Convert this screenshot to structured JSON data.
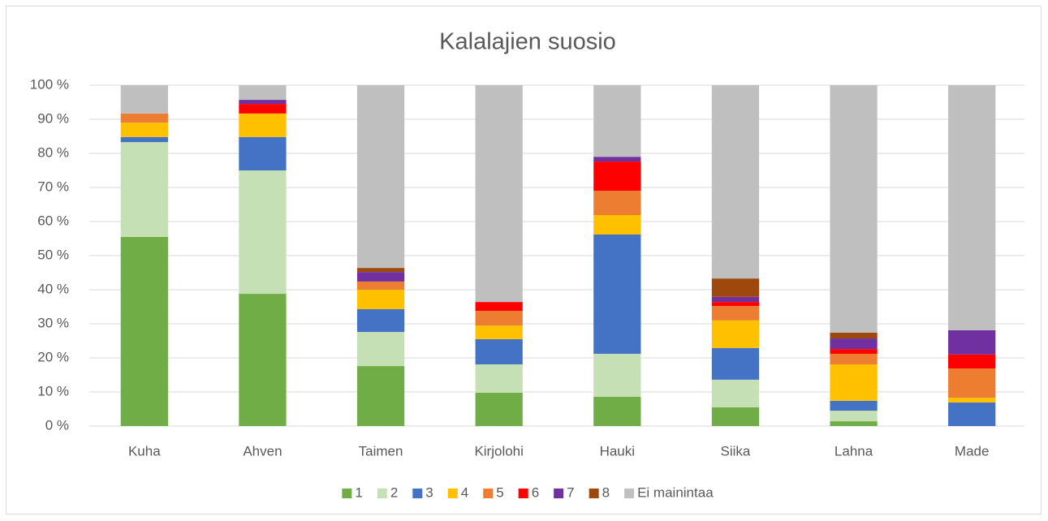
{
  "chart_data": {
    "type": "stacked_bar",
    "title": "Kalalajien suosio",
    "categories": [
      "Kuha",
      "Ahven",
      "Taimen",
      "Kirjolohi",
      "Hauki",
      "Siika",
      "Lahna",
      "Made"
    ],
    "series": [
      {
        "name": "1",
        "color": "#70ad47",
        "values": [
          55.5,
          38.8,
          17.6,
          9.8,
          8.6,
          5.5,
          1.4,
          0
        ]
      },
      {
        "name": "2",
        "color": "#c5e0b4",
        "values": [
          27.8,
          36.2,
          10.0,
          8.3,
          12.6,
          8.1,
          3.1,
          0
        ]
      },
      {
        "name": "3",
        "color": "#4472c4",
        "values": [
          1.5,
          9.8,
          6.7,
          7.4,
          35.0,
          9.3,
          2.9,
          6.9
        ]
      },
      {
        "name": "4",
        "color": "#ffc000",
        "values": [
          4.2,
          6.9,
          5.7,
          4.0,
          5.7,
          8.1,
          10.7,
          1.4
        ]
      },
      {
        "name": "5",
        "color": "#ed7d31",
        "values": [
          2.7,
          0,
          2.4,
          4.3,
          7.1,
          4.2,
          3.1,
          8.6
        ]
      },
      {
        "name": "6",
        "color": "#ff0000",
        "values": [
          0,
          2.8,
          0,
          2.6,
          8.6,
          1.2,
          1.4,
          4.1
        ]
      },
      {
        "name": "7",
        "color": "#7030a0",
        "values": [
          0,
          1.2,
          2.8,
          0,
          1.4,
          1.5,
          3.1,
          7.1
        ]
      },
      {
        "name": "8",
        "color": "#9e480e",
        "values": [
          0,
          0,
          1.2,
          0,
          0,
          5.4,
          1.7,
          0
        ]
      },
      {
        "name": "Ei mainintaa",
        "color": "#bfbfbf",
        "values": [
          8.3,
          4.3,
          53.6,
          63.6,
          21.0,
          56.7,
          72.6,
          71.9
        ]
      }
    ],
    "ylim": [
      0,
      100
    ],
    "yticks": [
      {
        "value": 0,
        "label": "0 %"
      },
      {
        "value": 10,
        "label": "10 %"
      },
      {
        "value": 20,
        "label": "20 %"
      },
      {
        "value": 30,
        "label": "30 %"
      },
      {
        "value": 40,
        "label": "40 %"
      },
      {
        "value": 50,
        "label": "50 %"
      },
      {
        "value": 60,
        "label": "60 %"
      },
      {
        "value": 70,
        "label": "70 %"
      },
      {
        "value": 80,
        "label": "80 %"
      },
      {
        "value": 90,
        "label": "90 %"
      },
      {
        "value": 100,
        "label": "100 %"
      }
    ],
    "grid": true,
    "legend": "bottom"
  }
}
